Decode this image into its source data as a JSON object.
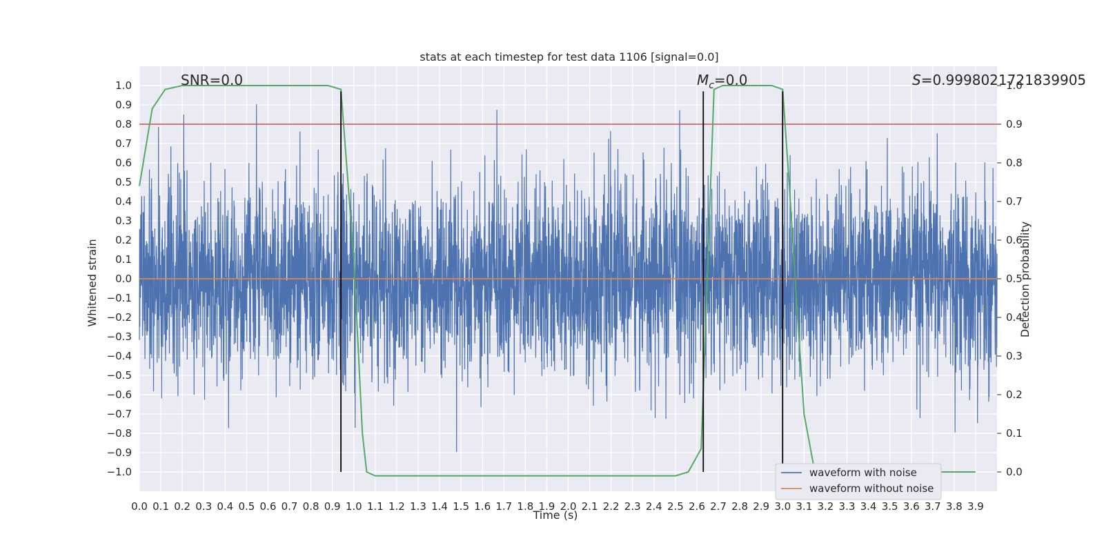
{
  "chart_data": {
    "type": "line",
    "title": "stats at each timestep for test data 1106 [signal=0.0]",
    "xlabel": "Time (s)",
    "ylabel": "Whitened strain",
    "ylabel_right": "Detection probability",
    "xlim": [
      0.0,
      4.0
    ],
    "ylim": [
      -1.1,
      1.1
    ],
    "ylim_right": [
      -0.05,
      1.05
    ],
    "x_ticks": [
      "0.0",
      "0.1",
      "0.2",
      "0.3",
      "0.4",
      "0.5",
      "0.6",
      "0.7",
      "0.8",
      "0.9",
      "1.0",
      "1.1",
      "1.2",
      "1.3",
      "1.4",
      "1.5",
      "1.6",
      "1.7",
      "1.8",
      "1.9",
      "2.0",
      "2.1",
      "2.2",
      "2.3",
      "2.4",
      "2.5",
      "2.6",
      "2.7",
      "2.8",
      "2.9",
      "3.0",
      "3.1",
      "3.2",
      "3.3",
      "3.4",
      "3.5",
      "3.6",
      "3.7",
      "3.8",
      "3.9"
    ],
    "y_ticks": [
      "1.0",
      "0.9",
      "0.8",
      "0.7",
      "0.6",
      "0.5",
      "0.4",
      "0.3",
      "0.2",
      "0.1",
      "0.0",
      "−0.1",
      "−0.2",
      "−0.3",
      "−0.4",
      "−0.5",
      "−0.6",
      "−0.7",
      "−0.8",
      "−0.9",
      "−1.0"
    ],
    "y_right_ticks": [
      "1.0",
      "0.9",
      "0.8",
      "0.7",
      "0.6",
      "0.5",
      "0.4",
      "0.3",
      "0.2",
      "0.1",
      "0.0"
    ],
    "grid": true,
    "legend_position": "lower-right",
    "series": [
      {
        "name": "waveform with noise",
        "color": "#4c72b0",
        "kind": "noise",
        "x_range": [
          0.0,
          4.0
        ],
        "y_range": [
          -1.0,
          1.0
        ]
      },
      {
        "name": "waveform without noise",
        "color": "#dd8452",
        "kind": "flat",
        "value": 0.0
      },
      {
        "color": "#55a868",
        "axis": "right",
        "x": [
          0.0,
          0.06,
          0.12,
          0.2,
          0.3,
          0.5,
          0.7,
          0.88,
          0.94,
          1.0,
          1.04,
          1.06,
          1.1,
          1.2,
          1.5,
          2.0,
          2.5,
          2.56,
          2.62,
          2.68,
          2.72,
          2.8,
          2.95,
          3.0,
          3.03,
          3.07,
          3.1,
          3.15,
          3.2,
          3.5,
          3.9
        ],
        "y": [
          0.74,
          0.94,
          0.99,
          1.0,
          1.0,
          1.0,
          1.0,
          1.0,
          0.99,
          0.55,
          0.1,
          0.0,
          -0.01,
          -0.01,
          -0.01,
          -0.01,
          -0.01,
          0.0,
          0.06,
          0.99,
          1.0,
          1.0,
          1.0,
          0.99,
          0.75,
          0.4,
          0.15,
          0.0,
          0.0,
          0.0,
          0.0
        ]
      },
      {
        "color": "#c44e52",
        "kind": "hline",
        "axis": "right",
        "value": 0.9
      }
    ],
    "vlines": [
      0.94,
      2.63,
      3.0
    ],
    "annotations": [
      {
        "text": "SNR=0.0"
      },
      {
        "text": "M_c=0.0",
        "base": "M",
        "sub": "c",
        "rest": "=0.0"
      },
      {
        "text": "S=0.9998021721839905",
        "base": "S",
        "rest": "=0.9998021721839905"
      }
    ]
  }
}
